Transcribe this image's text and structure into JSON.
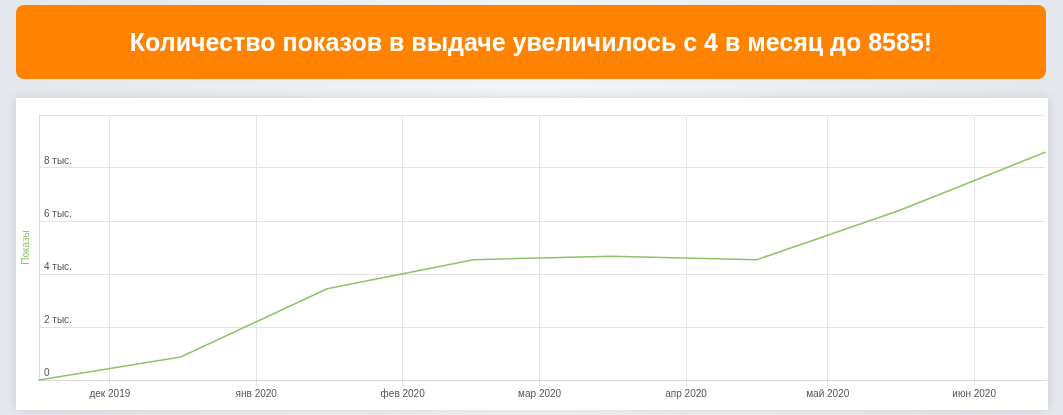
{
  "chart_data": {
    "type": "line",
    "title": "Количество показов в выдаче увеличилось с 4 в месяц до 8585!",
    "ylabel": "Показы",
    "x": [
      "2019-11-16",
      "2019-12-16",
      "2020-01-16",
      "2020-02-16",
      "2020-03-16",
      "2020-04-16",
      "2020-05-16",
      "2020-06-16"
    ],
    "values": [
      0,
      0.87,
      3.44,
      4.54,
      4.67,
      4.54,
      6.39,
      8.59
    ],
    "color": "#8cc46a",
    "xlim": [
      "2019-11-16",
      "2020-06-16"
    ],
    "xticks": [
      {
        "value": "2019-12-01",
        "label": "дек 2019"
      },
      {
        "value": "2020-01-01",
        "label": "янв 2020"
      },
      {
        "value": "2020-02-01",
        "label": "фев 2020"
      },
      {
        "value": "2020-03-01",
        "label": "мар 2020"
      },
      {
        "value": "2020-04-01",
        "label": "апр 2020"
      },
      {
        "value": "2020-05-01",
        "label": "май 2020"
      },
      {
        "value": "2020-06-01",
        "label": "июн 2020"
      }
    ],
    "ylim": [
      0,
      10
    ],
    "yticks": [
      0,
      {
        "value": 2,
        "label": "2 тыс."
      },
      {
        "value": 4,
        "label": "4 тыс."
      },
      {
        "value": 6,
        "label": "6 тыс."
      },
      {
        "value": 8,
        "label": "8 тыс."
      },
      {
        "value": 10,
        "label": null
      }
    ],
    "grid": true,
    "marker": "none"
  }
}
